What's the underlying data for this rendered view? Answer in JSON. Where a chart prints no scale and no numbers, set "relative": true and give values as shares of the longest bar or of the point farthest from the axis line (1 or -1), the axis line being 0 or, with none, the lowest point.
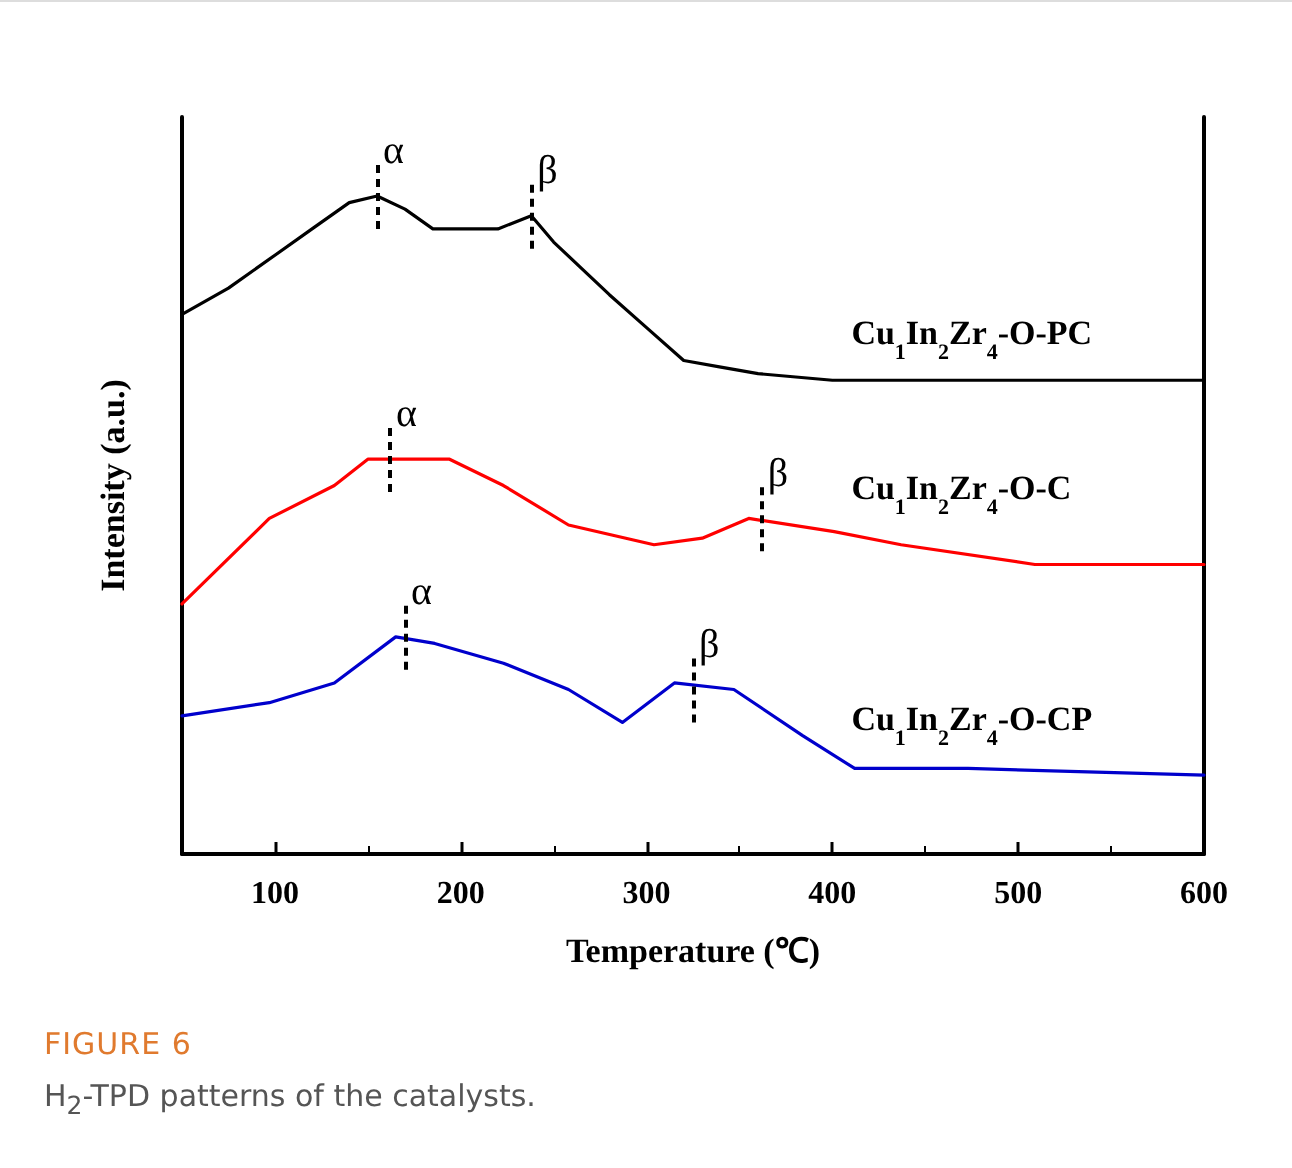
{
  "chart_data": {
    "type": "line",
    "relative": true,
    "xlabel": "Temperature (℃)",
    "ylabel": "Intensity (a.u.)",
    "xlim": [
      50,
      600
    ],
    "xticks": [
      100,
      200,
      300,
      400,
      500,
      600
    ],
    "legend": false,
    "grid": false,
    "marker": "none",
    "tick_labels": "x",
    "series": [
      {
        "name": "Cu$_{1}$In$_{2}$Zr$_{4}$-O-PC",
        "color": "#000000",
        "x": [
          50,
          75,
          100,
          120,
          140,
          155,
          170,
          185,
          200,
          220,
          238,
          250,
          265,
          280,
          300,
          320,
          340,
          360,
          400,
          500,
          600
        ],
        "values": [
          0.82,
          0.86,
          0.91,
          0.95,
          0.99,
          1.0,
          0.98,
          0.95,
          0.95,
          0.95,
          0.97,
          0.93,
          0.89,
          0.85,
          0.8,
          0.75,
          0.74,
          0.73,
          0.72,
          0.72,
          0.72
        ]
      },
      {
        "name": "Cu$_{1}$In$_{2}$Zr$_{4}$-O-C",
        "color": "#ff0000",
        "x": [
          50,
          97,
          132,
          150,
          161,
          194,
          223,
          258,
          304,
          330,
          355,
          401,
          437,
          509,
          600
        ],
        "values": [
          0.38,
          0.51,
          0.56,
          0.6,
          0.6,
          0.6,
          0.56,
          0.5,
          0.47,
          0.48,
          0.51,
          0.49,
          0.47,
          0.44,
          0.44
        ]
      },
      {
        "name": "Cu$_{1}$In$_{2}$Zr$_{4}$-O-CP",
        "color": "#0000cc",
        "x": [
          50,
          97,
          132,
          165,
          186,
          223,
          258,
          287,
          315,
          347,
          384,
          412,
          473,
          600
        ],
        "values": [
          0.21,
          0.23,
          0.26,
          0.33,
          0.32,
          0.29,
          0.25,
          0.2,
          0.26,
          0.25,
          0.18,
          0.13,
          0.13,
          0.12
        ]
      }
    ],
    "annotations": [
      {
        "text": "α",
        "x": 155,
        "y": 1.0
      },
      {
        "text": "β",
        "x": 238,
        "y": 0.97
      },
      {
        "text": "α",
        "x": 162,
        "y": 0.6
      },
      {
        "text": "β",
        "x": 362,
        "y": 0.51
      },
      {
        "text": "α",
        "x": 170,
        "y": 0.33
      },
      {
        "text": "β",
        "x": 325,
        "y": 0.25
      },
      "FIGURE 6",
      "H$_{2}$-TPD patterns of the catalysts."
    ]
  }
}
